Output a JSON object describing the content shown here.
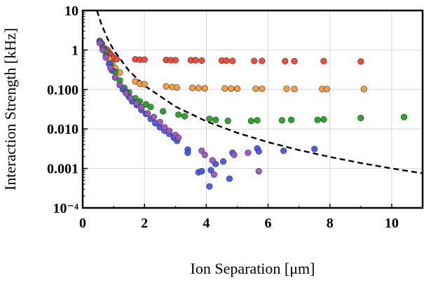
{
  "chart_data": {
    "type": "scatter",
    "title": "",
    "xlabel": "Ion Separation [μm]",
    "ylabel": "Interaction Strength [kHz]",
    "xlim": [
      0,
      11
    ],
    "ylim": [
      0.0001,
      10
    ],
    "y_scale": "log",
    "grid": true,
    "legend": "none",
    "x_ticks": [
      0,
      2,
      4,
      6,
      8,
      10
    ],
    "x_tick_labels": [
      "0",
      "2",
      "4",
      "6",
      "8",
      "10"
    ],
    "y_ticks": [
      0.0001,
      0.001,
      0.01,
      0.1,
      1,
      10
    ],
    "y_tick_labels": [
      "10⁻⁴",
      "0.001",
      "0.010",
      "0.100",
      "1",
      "10"
    ],
    "reference_curve": {
      "style": "dashed",
      "color": "#000000",
      "form": "y = 1 / x^3",
      "points": [
        [
          0.46,
          10.0
        ],
        [
          0.6,
          4.6
        ],
        [
          0.8,
          1.95
        ],
        [
          1.0,
          1.0
        ],
        [
          1.5,
          0.296
        ],
        [
          2.0,
          0.125
        ],
        [
          3.0,
          0.037
        ],
        [
          4.0,
          0.0156
        ],
        [
          5.0,
          0.008
        ],
        [
          6.0,
          0.00463
        ],
        [
          7.0,
          0.00292
        ],
        [
          8.0,
          0.00195
        ],
        [
          9.0,
          0.00137
        ],
        [
          10.0,
          0.001
        ],
        [
          11.0,
          0.00075
        ]
      ]
    },
    "series": [
      {
        "color": "#ee4433",
        "points": [
          [
            0.55,
            1.7
          ],
          [
            0.62,
            1.45
          ],
          [
            0.72,
            1.1
          ],
          [
            0.8,
            1.0
          ],
          [
            0.86,
            0.85
          ],
          [
            0.92,
            0.75
          ],
          [
            1.0,
            0.65
          ],
          [
            1.1,
            0.58
          ],
          [
            1.7,
            0.58
          ],
          [
            1.85,
            0.57
          ],
          [
            2.0,
            0.57
          ],
          [
            2.7,
            0.56
          ],
          [
            2.85,
            0.55
          ],
          [
            3.0,
            0.55
          ],
          [
            3.5,
            0.55
          ],
          [
            3.65,
            0.55
          ],
          [
            3.85,
            0.54
          ],
          [
            4.5,
            0.54
          ],
          [
            4.65,
            0.54
          ],
          [
            4.85,
            0.53
          ],
          [
            5.55,
            0.53
          ],
          [
            5.8,
            0.53
          ],
          [
            6.55,
            0.52
          ],
          [
            6.85,
            0.52
          ],
          [
            7.8,
            0.52
          ],
          [
            9.0,
            0.51
          ]
        ]
      },
      {
        "color": "#f59a3d",
        "points": [
          [
            0.55,
            1.6
          ],
          [
            0.65,
            1.2
          ],
          [
            0.75,
            0.9
          ],
          [
            0.85,
            0.6
          ],
          [
            0.95,
            0.45
          ],
          [
            1.05,
            0.35
          ],
          [
            1.2,
            0.27
          ],
          [
            1.7,
            0.16
          ],
          [
            1.85,
            0.14
          ],
          [
            2.0,
            0.135
          ],
          [
            2.7,
            0.12
          ],
          [
            2.9,
            0.115
          ],
          [
            3.05,
            0.112
          ],
          [
            3.55,
            0.11
          ],
          [
            3.75,
            0.108
          ],
          [
            3.95,
            0.107
          ],
          [
            4.6,
            0.106
          ],
          [
            4.8,
            0.105
          ],
          [
            5.0,
            0.105
          ],
          [
            5.6,
            0.104
          ],
          [
            5.8,
            0.104
          ],
          [
            6.6,
            0.104
          ],
          [
            6.85,
            0.103
          ],
          [
            7.75,
            0.103
          ],
          [
            7.9,
            0.103
          ],
          [
            9.1,
            0.103
          ]
        ]
      },
      {
        "color": "#22a022",
        "points": [
          [
            0.6,
            1.5
          ],
          [
            0.75,
            0.9
          ],
          [
            0.9,
            0.45
          ],
          [
            1.05,
            0.28
          ],
          [
            1.2,
            0.17
          ],
          [
            1.35,
            0.11
          ],
          [
            1.5,
            0.085
          ],
          [
            1.7,
            0.06
          ],
          [
            1.85,
            0.05
          ],
          [
            2.05,
            0.042
          ],
          [
            2.2,
            0.036
          ],
          [
            2.6,
            0.028
          ],
          [
            3.1,
            0.023
          ],
          [
            3.3,
            0.021
          ],
          [
            4.1,
            0.018
          ],
          [
            4.3,
            0.017
          ],
          [
            4.7,
            0.016
          ],
          [
            5.45,
            0.016
          ],
          [
            5.65,
            0.0165
          ],
          [
            6.45,
            0.0165
          ],
          [
            6.75,
            0.017
          ],
          [
            7.6,
            0.017
          ],
          [
            7.8,
            0.0175
          ],
          [
            9.0,
            0.019
          ],
          [
            10.4,
            0.02
          ]
        ]
      },
      {
        "color": "#4455ee",
        "points": [
          [
            0.55,
            1.6
          ],
          [
            0.65,
            1.1
          ],
          [
            0.75,
            0.7
          ],
          [
            0.85,
            0.45
          ],
          [
            0.95,
            0.3
          ],
          [
            1.05,
            0.2
          ],
          [
            1.2,
            0.13
          ],
          [
            1.3,
            0.1
          ],
          [
            1.4,
            0.085
          ],
          [
            1.5,
            0.065
          ],
          [
            1.6,
            0.05
          ],
          [
            1.75,
            0.04
          ],
          [
            1.9,
            0.03
          ],
          [
            2.05,
            0.024
          ],
          [
            2.2,
            0.018
          ],
          [
            2.35,
            0.014
          ],
          [
            2.5,
            0.011
          ],
          [
            2.65,
            0.009
          ],
          [
            2.8,
            0.0075
          ],
          [
            2.95,
            0.006
          ],
          [
            3.05,
            0.005
          ],
          [
            3.4,
            0.003
          ],
          [
            3.4,
            0.0025
          ],
          [
            3.75,
            0.0008
          ],
          [
            3.85,
            0.00085
          ],
          [
            4.1,
            0.00035
          ],
          [
            4.15,
            0.0009
          ],
          [
            4.3,
            0.0013
          ],
          [
            4.55,
            0.0015
          ],
          [
            4.75,
            0.00055
          ],
          [
            4.85,
            0.0025
          ],
          [
            5.65,
            0.0032
          ],
          [
            5.7,
            0.0027
          ],
          [
            6.5,
            0.0028
          ],
          [
            7.5,
            0.0031
          ]
        ]
      },
      {
        "color": "#9b55c0",
        "points": [
          [
            0.55,
            1.5
          ],
          [
            0.65,
            1.0
          ],
          [
            0.75,
            0.65
          ],
          [
            0.9,
            0.35
          ],
          [
            1.05,
            0.2
          ],
          [
            1.2,
            0.13
          ],
          [
            1.4,
            0.08
          ],
          [
            1.55,
            0.06
          ],
          [
            1.75,
            0.045
          ],
          [
            1.9,
            0.035
          ],
          [
            2.1,
            0.025
          ],
          [
            2.3,
            0.02
          ],
          [
            2.5,
            0.015
          ],
          [
            2.65,
            0.011
          ],
          [
            2.8,
            0.009
          ],
          [
            3.0,
            0.007
          ],
          [
            3.1,
            0.006
          ],
          [
            3.85,
            0.0028
          ],
          [
            3.95,
            0.0022
          ],
          [
            4.2,
            0.0016
          ],
          [
            4.25,
            0.0007
          ],
          [
            4.9,
            0.0022
          ],
          [
            5.35,
            0.0025
          ],
          [
            5.7,
            0.00085
          ]
        ]
      }
    ]
  }
}
